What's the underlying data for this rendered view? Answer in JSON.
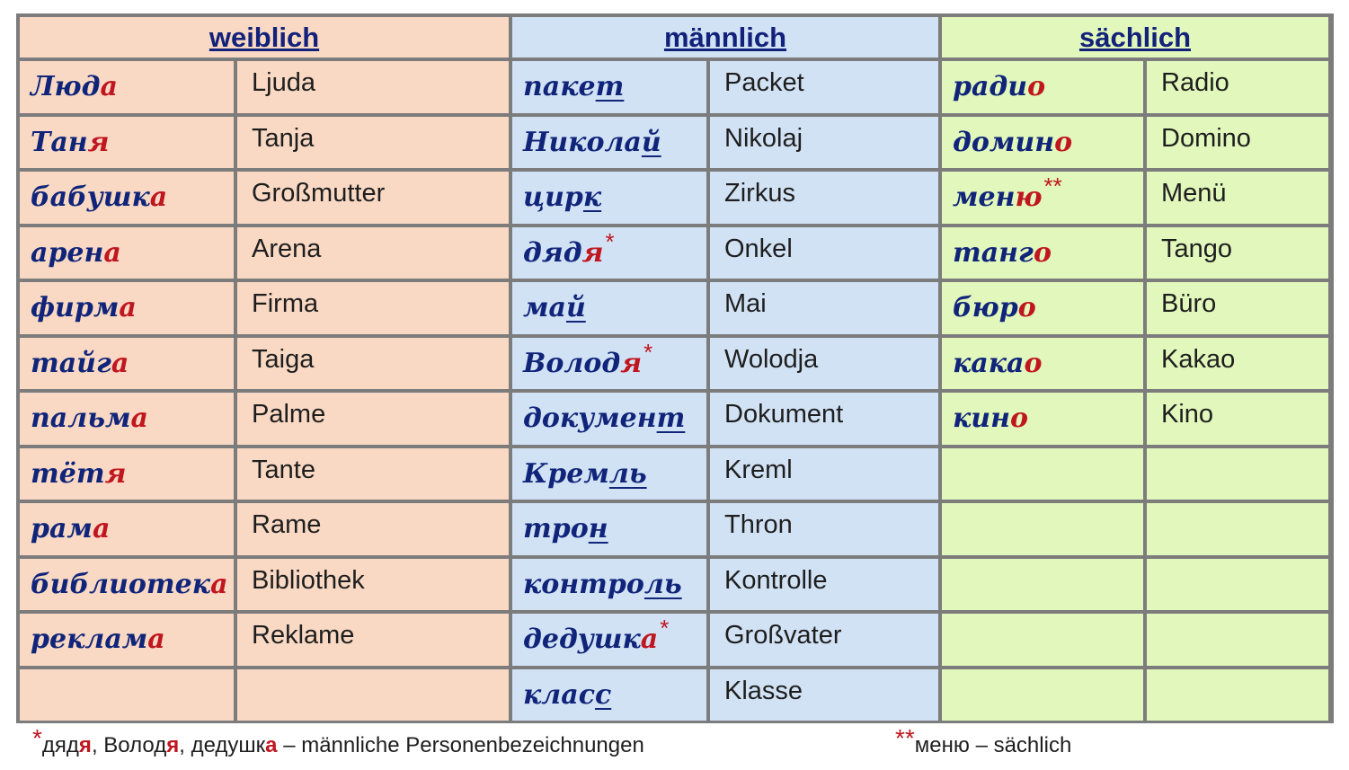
{
  "headers": {
    "feminine": "weiblich",
    "masculine": "männlich",
    "neuter": "sächlich"
  },
  "feminine": [
    {
      "stem": "Люд",
      "end": "а",
      "de": "Ljuda"
    },
    {
      "stem": "Тан",
      "end": "я",
      "de": "Tanja"
    },
    {
      "stem": "бабушк",
      "end": "а",
      "de": "Großmutter"
    },
    {
      "stem": "арен",
      "end": "а",
      "de": "Arena"
    },
    {
      "stem": "фирм",
      "end": "а",
      "de": "Firma"
    },
    {
      "stem": "тайг",
      "end": "а",
      "de": "Taiga"
    },
    {
      "stem": "пальм",
      "end": "а",
      "de": "Palme"
    },
    {
      "stem": "тёт",
      "end": "я",
      "de": "Tante"
    },
    {
      "stem": "рам",
      "end": "а",
      "de": "Rame"
    },
    {
      "stem": "библиотек",
      "end": "а",
      "de": "Bibliothek"
    },
    {
      "stem": "реклам",
      "end": "а",
      "de": "Reklame"
    }
  ],
  "masculine": [
    {
      "stem": "паке",
      "tail": "т",
      "de": "Packet"
    },
    {
      "stem": "Никола",
      "tail": "й",
      "de": "Nikolaj"
    },
    {
      "stem": "цир",
      "tail": "к",
      "de": "Zirkus"
    },
    {
      "stem": "дяд",
      "end": "я",
      "star": "*",
      "de": "Onkel"
    },
    {
      "stem": "ма",
      "tail": "й",
      "de": "Mai"
    },
    {
      "stem": "Волод",
      "end": "я",
      "star": "*",
      "de": "Wolodja"
    },
    {
      "stem": "докумен",
      "tail": "т",
      "de": "Dokument"
    },
    {
      "stem": "Крем",
      "tail": "ль",
      "de": "Kreml"
    },
    {
      "stem": "тро",
      "tail": "н",
      "de": "Thron"
    },
    {
      "stem": "контро",
      "tail": "ль",
      "de": "Kontrolle"
    },
    {
      "stem": "дедушк",
      "end": "а",
      "star": "*",
      "de": "Großvater"
    },
    {
      "stem": "клас",
      "tail": "с",
      "de": "Klasse"
    }
  ],
  "neuter": [
    {
      "stem": "ради",
      "end": "о",
      "de": "Radio"
    },
    {
      "stem": "домин",
      "end": "о",
      "de": "Domino"
    },
    {
      "stem": "мен",
      "end": "ю",
      "star": "**",
      "de": "Menü"
    },
    {
      "stem": "танг",
      "end": "о",
      "de": "Tango"
    },
    {
      "stem": "бюр",
      "end": "о",
      "de": "Büro"
    },
    {
      "stem": "кака",
      "end": "о",
      "de": "Kakao"
    },
    {
      "stem": "кин",
      "end": "о",
      "de": "Kino"
    }
  ],
  "footnotes": {
    "note1": {
      "star": "*",
      "w1_stem": "дяд",
      "w1_end": "я",
      "w2_stem": "Волод",
      "w2_end": "я",
      "w3_stem": "дедушк",
      "w3_end": "а",
      "sep": ", ",
      "text": " – männliche Personenbezeichnungen"
    },
    "note2": {
      "star": "**",
      "text": "меню – sächlich"
    }
  }
}
